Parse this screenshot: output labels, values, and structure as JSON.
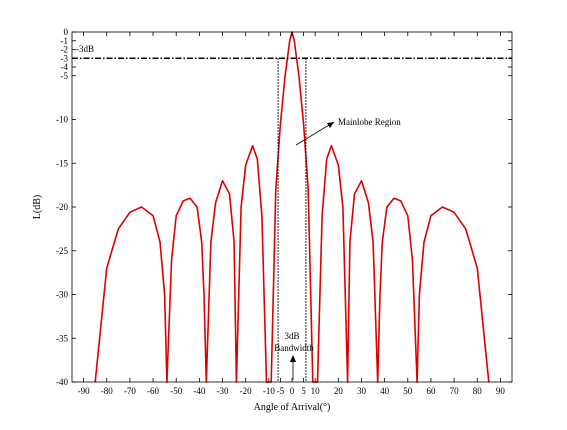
{
  "chart_data": {
    "type": "line",
    "title": "",
    "xlabel": "Angle of Arrival(°)",
    "ylabel": "L(dB)",
    "xlim": [
      -95,
      95
    ],
    "ylim": [
      -40,
      0
    ],
    "grid": false,
    "x_ticks": [
      -90,
      -80,
      -70,
      -60,
      -50,
      -40,
      -30,
      -20,
      -10,
      -5,
      0,
      5,
      10,
      20,
      30,
      40,
      50,
      60,
      70,
      80,
      90
    ],
    "y_ticks": [
      0,
      -1,
      -2,
      -3,
      -4,
      -5,
      -10,
      -15,
      -20,
      -25,
      -30,
      -35,
      -40
    ],
    "series": [
      {
        "name": "",
        "color": "#dd0000",
        "x": [
          -85,
          -80,
          -75,
          -70,
          -65,
          -60,
          -57,
          -55,
          -54,
          -52,
          -50,
          -47,
          -44,
          -41,
          -39,
          -38,
          -37,
          -35,
          -33,
          -30,
          -27,
          -25,
          -24,
          -22,
          -20,
          -17,
          -15,
          -13,
          -11,
          -10,
          -9,
          -7,
          -5,
          -3,
          -1,
          0,
          1,
          3,
          5,
          7,
          9,
          10,
          11,
          13,
          15,
          17,
          20,
          22,
          24,
          25,
          27,
          30,
          33,
          35,
          37,
          38,
          39,
          41,
          44,
          47,
          50,
          52,
          54,
          55,
          57,
          60,
          65,
          70,
          75,
          80,
          85
        ],
        "y": [
          -40,
          -27,
          -22.5,
          -20.6,
          -20,
          -21,
          -24,
          -30,
          -40,
          -26,
          -21,
          -19.3,
          -19,
          -20,
          -24,
          -30,
          -40,
          -24,
          -19.5,
          -17,
          -18.5,
          -24,
          -40,
          -20,
          -15.2,
          -13,
          -14.5,
          -21,
          -40,
          -40,
          -40,
          -18,
          -10.5,
          -5,
          -1,
          0,
          -1,
          -5,
          -10.5,
          -18,
          -40,
          -40,
          -40,
          -21,
          -14.5,
          -13,
          -15.2,
          -20,
          -40,
          -24,
          -18.5,
          -17,
          -19.5,
          -24,
          -40,
          -30,
          -24,
          -20,
          -19,
          -19.3,
          -21,
          -26,
          -40,
          -30,
          -24,
          -21,
          -20,
          -20.6,
          -22.5,
          -27,
          -40
        ]
      }
    ],
    "reference_line": {
      "y": -3,
      "style": "dash-dot",
      "label": "-3dB"
    },
    "vertical_markers": [
      -6,
      6
    ],
    "annotations": [
      {
        "text": "Mainlobe Region"
      },
      {
        "text": "3dB"
      },
      {
        "text": "Bandwidth"
      }
    ]
  }
}
